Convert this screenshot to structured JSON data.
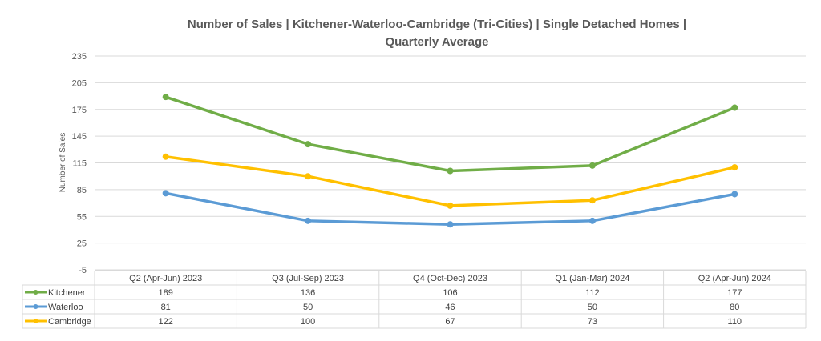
{
  "chart_data": {
    "type": "line",
    "title_lines": [
      "Number of Sales | Kitchener-Waterloo-Cambridge (Tri-Cities) | Single Detached Homes |",
      "Quarterly Average"
    ],
    "ylabel": "Number of Sales",
    "xlabel": "",
    "ylim": [
      -5,
      235
    ],
    "yticks": [
      "235",
      "205",
      "175",
      "145",
      "115",
      "85",
      "55",
      "25",
      "-5"
    ],
    "ytick_values": [
      235,
      205,
      175,
      145,
      115,
      85,
      55,
      25,
      -5
    ],
    "grid": true,
    "legend": "data-table-left",
    "categories": [
      "Q2 (Apr-Jun) 2023",
      "Q3 (Jul-Sep) 2023",
      "Q4 (Oct-Dec) 2023",
      "Q1 (Jan-Mar) 2024",
      "Q2 (Apr-Jun) 2024"
    ],
    "series": [
      {
        "name": "Kitchener",
        "color": "#70ad47",
        "values": [
          189,
          136,
          106,
          112,
          177
        ]
      },
      {
        "name": "Waterloo",
        "color": "#5b9bd5",
        "values": [
          81,
          50,
          46,
          50,
          80
        ]
      },
      {
        "name": "Cambridge",
        "color": "#ffc000",
        "values": [
          122,
          100,
          67,
          73,
          110
        ]
      }
    ]
  }
}
